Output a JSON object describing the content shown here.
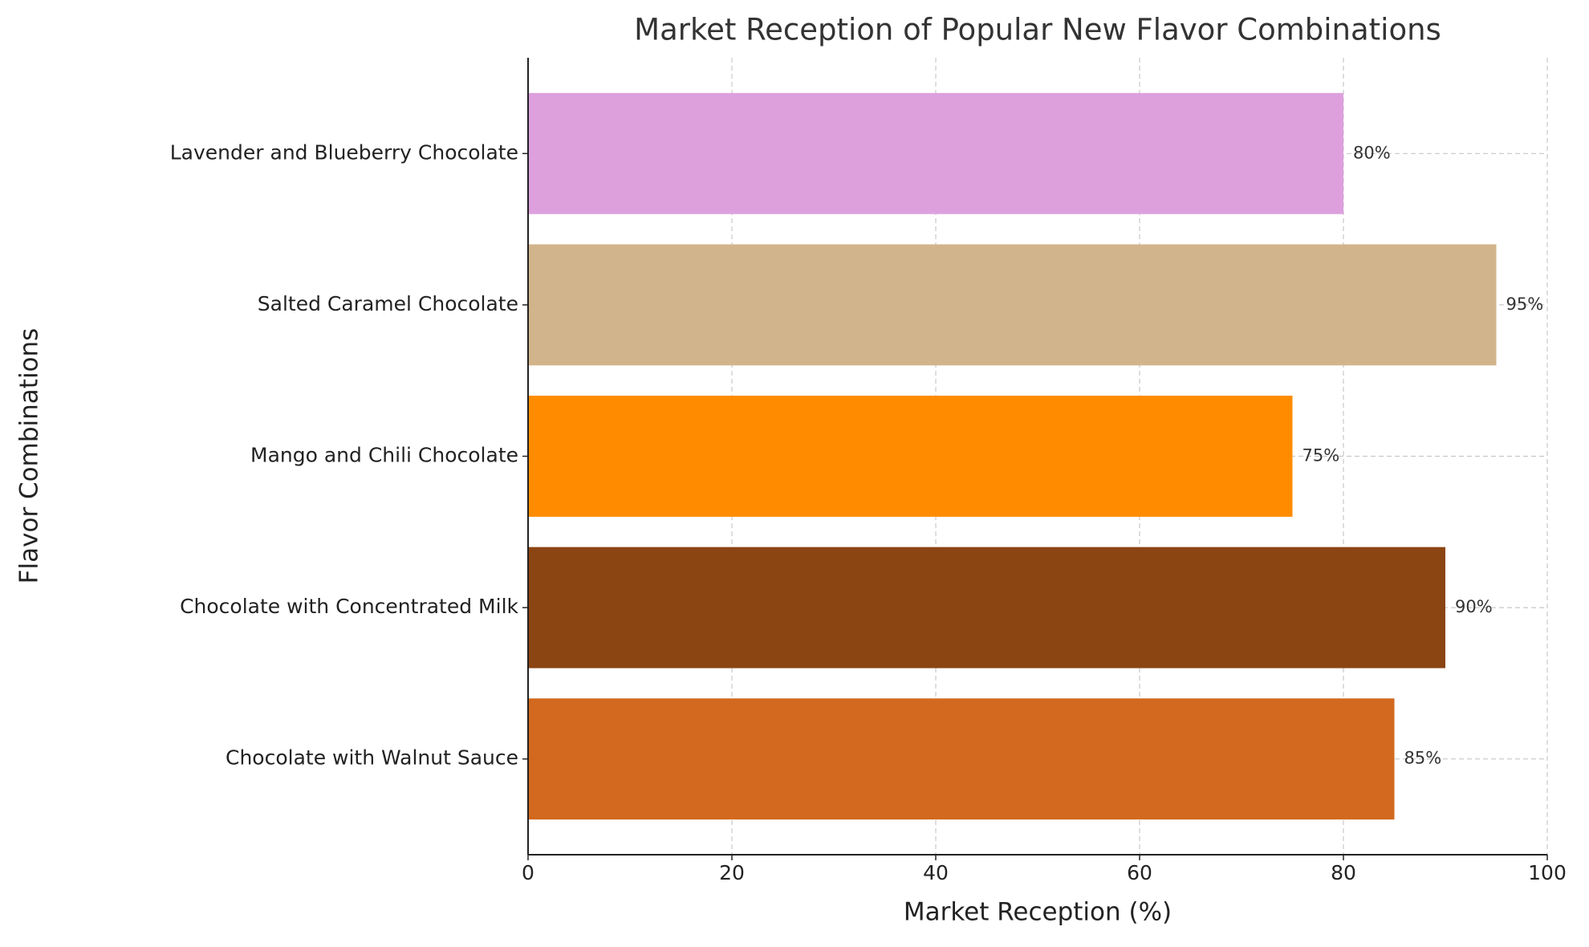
{
  "chart_data": {
    "type": "bar",
    "orientation": "horizontal",
    "title": "Market Reception of Popular New Flavor Combinations",
    "xlabel": "Market Reception (%)",
    "ylabel": "Flavor Combinations",
    "categories": [
      "Chocolate with Walnut Sauce",
      "Chocolate with Concentrated Milk",
      "Mango and Chili Chocolate",
      "Salted Caramel Chocolate",
      "Lavender and Blueberry Chocolate"
    ],
    "values": [
      85,
      90,
      75,
      95,
      80
    ],
    "value_labels": [
      "85%",
      "90%",
      "75%",
      "95%",
      "80%"
    ],
    "colors": [
      "#d2691e",
      "#8b4513",
      "#ff8c00",
      "#d2b48c",
      "#dda0dd"
    ],
    "xlim": [
      0,
      100
    ],
    "xticks": [
      0,
      20,
      40,
      60,
      80,
      100
    ],
    "grid": true
  }
}
